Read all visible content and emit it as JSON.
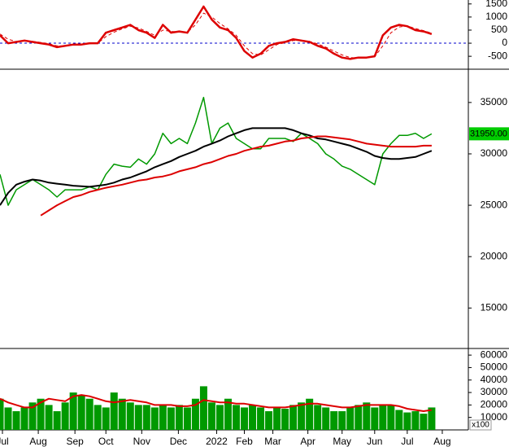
{
  "chart_data": [
    {
      "type": "line",
      "xlim": [
        0,
        57.5
      ],
      "ylim": [
        -900,
        1650
      ],
      "yticks": [
        1500,
        1000,
        500,
        0,
        -500
      ],
      "hline": 0,
      "hline_color": "#0000cc",
      "series": [
        {
          "color": "#dd0000",
          "width": 2.5,
          "values": [
            300,
            0,
            50,
            100,
            50,
            0,
            -50,
            -150,
            -100,
            -50,
            -50,
            0,
            0,
            400,
            500,
            600,
            700,
            500,
            400,
            200,
            700,
            400,
            450,
            400,
            900,
            1400,
            900,
            600,
            500,
            200,
            -300,
            -550,
            -400,
            -100,
            0,
            50,
            150,
            100,
            50,
            -100,
            -200,
            -400,
            -550,
            -600,
            -550,
            -550,
            -500,
            300,
            600,
            700,
            650,
            500,
            450,
            350
          ]
        },
        {
          "color": "#dd0000",
          "width": 1,
          "dash": true,
          "values": [
            350,
            150,
            60,
            80,
            70,
            30,
            -20,
            -100,
            -110,
            -70,
            -50,
            -20,
            0,
            250,
            420,
            550,
            650,
            580,
            450,
            300,
            500,
            450,
            430,
            420,
            700,
            1150,
            1000,
            750,
            550,
            300,
            -100,
            -400,
            -450,
            -250,
            -50,
            20,
            100,
            110,
            70,
            -30,
            -150,
            -300,
            -450,
            -550,
            -570,
            -550,
            -520,
            -100,
            400,
            620,
            660,
            560,
            480,
            380
          ]
        }
      ]
    },
    {
      "type": "line",
      "xlim": [
        0,
        57.5
      ],
      "ylim": [
        11300,
        38000
      ],
      "yticks": [
        35000,
        30000,
        25000,
        20000,
        15000
      ],
      "last_price": {
        "value": 31950,
        "label": "31950.00"
      },
      "series": [
        {
          "color": "#009900",
          "width": 1.5,
          "values": [
            28000,
            25000,
            26500,
            27000,
            27500,
            27000,
            26500,
            25800,
            26500,
            26500,
            26500,
            26800,
            26500,
            28000,
            29000,
            28800,
            28700,
            29500,
            29000,
            30000,
            32000,
            31000,
            31500,
            31000,
            33000,
            35500,
            31000,
            32500,
            33000,
            31500,
            31000,
            30500,
            30500,
            31500,
            31500,
            31500,
            31200,
            32000,
            31500,
            31000,
            30000,
            29500,
            28800,
            28500,
            28000,
            27500,
            27000,
            30000,
            31000,
            31800,
            31800,
            32000,
            31500,
            31950
          ]
        },
        {
          "color": "#000000",
          "width": 2,
          "values": [
            25000,
            26200,
            27000,
            27300,
            27500,
            27400,
            27200,
            27100,
            27000,
            26900,
            26850,
            26800,
            26900,
            27000,
            27200,
            27500,
            27700,
            28000,
            28300,
            28700,
            29000,
            29300,
            29700,
            30000,
            30300,
            30700,
            31000,
            31300,
            31700,
            32000,
            32300,
            32500,
            32500,
            32500,
            32500,
            32500,
            32300,
            32000,
            31800,
            31500,
            31400,
            31200,
            31000,
            30800,
            30500,
            30200,
            29800,
            29600,
            29500,
            29500,
            29600,
            29700,
            30000,
            30300
          ]
        },
        {
          "color": "#dd0000",
          "width": 2,
          "values": [
            null,
            null,
            null,
            null,
            null,
            24000,
            24500,
            25000,
            25400,
            25800,
            26000,
            26300,
            26500,
            26700,
            26850,
            27000,
            27200,
            27400,
            27500,
            27700,
            27800,
            28000,
            28300,
            28500,
            28700,
            29000,
            29200,
            29500,
            29800,
            30000,
            30300,
            30500,
            30700,
            30800,
            31000,
            31200,
            31300,
            31500,
            31600,
            31700,
            31700,
            31600,
            31500,
            31400,
            31200,
            31000,
            30900,
            30800,
            30700,
            30700,
            30700,
            30700,
            30800,
            30800
          ]
        }
      ]
    },
    {
      "type": "combo",
      "xlim": [
        0,
        57.5
      ],
      "ylim": [
        0,
        64000
      ],
      "yticks": [
        60000,
        50000,
        40000,
        30000,
        20000,
        10000
      ],
      "unit_label": "x100",
      "xticks": [
        {
          "value": 0.3,
          "label": "Jul"
        },
        {
          "value": 4.7,
          "label": "Aug"
        },
        {
          "value": 9.2,
          "label": "Sep"
        },
        {
          "value": 13,
          "label": "Oct"
        },
        {
          "value": 17.4,
          "label": "Nov"
        },
        {
          "value": 21.9,
          "label": "Dec"
        },
        {
          "value": 26.6,
          "label": "2022"
        },
        {
          "value": 30,
          "label": "Feb"
        },
        {
          "value": 33.5,
          "label": "Mar"
        },
        {
          "value": 37.8,
          "label": "Apr"
        },
        {
          "value": 42,
          "label": "May"
        },
        {
          "value": 46,
          "label": "Jun"
        },
        {
          "value": 50,
          "label": "Jul"
        },
        {
          "value": 54.3,
          "label": "Aug"
        }
      ],
      "series": [
        {
          "type": "bar",
          "color": "#009900",
          "values": [
            25000,
            18000,
            15000,
            18000,
            22000,
            25000,
            20000,
            15000,
            22000,
            30000,
            28000,
            25000,
            20000,
            18000,
            30000,
            25000,
            22000,
            20000,
            20000,
            18000,
            20000,
            18000,
            20000,
            18000,
            25000,
            35000,
            22000,
            20000,
            25000,
            20000,
            18000,
            20000,
            18000,
            15000,
            18000,
            17000,
            20000,
            22000,
            25000,
            20000,
            18000,
            15000,
            15000,
            18000,
            20000,
            22000,
            18000,
            20000,
            20000,
            16000,
            14000,
            15000,
            13000,
            18000
          ]
        },
        {
          "type": "line",
          "color": "#dd0000",
          "width": 2,
          "values": [
            25000,
            22000,
            20000,
            18000,
            18000,
            22000,
            25000,
            24000,
            23000,
            27000,
            28000,
            27000,
            25000,
            23000,
            22000,
            23000,
            24000,
            23000,
            22000,
            20000,
            20000,
            20000,
            19000,
            19000,
            20000,
            24000,
            23000,
            22000,
            22000,
            21000,
            21000,
            20000,
            19000,
            18000,
            18000,
            18000,
            19000,
            20000,
            21000,
            21000,
            20000,
            19000,
            18000,
            18000,
            19000,
            20000,
            20000,
            20000,
            20000,
            19000,
            17000,
            16000,
            15000,
            16000
          ]
        }
      ]
    }
  ]
}
